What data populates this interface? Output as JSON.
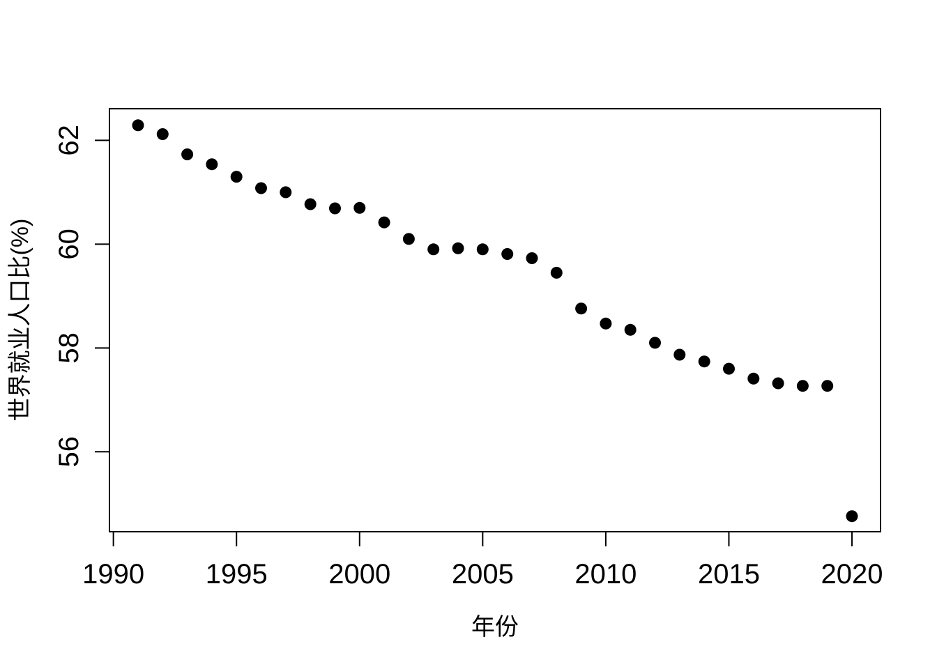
{
  "chart_data": {
    "type": "scatter",
    "title": "",
    "xlabel": "年份",
    "ylabel": "世界就业人口比(%)",
    "x": [
      1991,
      1992,
      1993,
      1994,
      1995,
      1996,
      1997,
      1998,
      1999,
      2000,
      2001,
      2002,
      2003,
      2004,
      2005,
      2006,
      2007,
      2008,
      2009,
      2010,
      2011,
      2012,
      2013,
      2014,
      2015,
      2016,
      2017,
      2018,
      2019,
      2020
    ],
    "y": [
      62.29,
      62.12,
      61.73,
      61.54,
      61.3,
      61.08,
      61.0,
      60.77,
      60.69,
      60.7,
      60.42,
      60.1,
      59.9,
      59.92,
      59.9,
      59.81,
      59.73,
      59.45,
      58.76,
      58.47,
      58.35,
      58.1,
      57.87,
      57.74,
      57.6,
      57.41,
      57.32,
      57.27,
      57.27,
      54.76
    ],
    "xticks": [
      1990,
      1995,
      2000,
      2005,
      2010,
      2015,
      2020
    ],
    "yticks": [
      56,
      58,
      60,
      62
    ],
    "xlim": [
      1989.84,
      2021.16
    ],
    "ylim": [
      54.46,
      62.61
    ],
    "grid": false,
    "legend": null,
    "marker": "filled-circle",
    "marker_color": "#000000",
    "axis_color": "#000000",
    "background_color": "#ffffff"
  }
}
